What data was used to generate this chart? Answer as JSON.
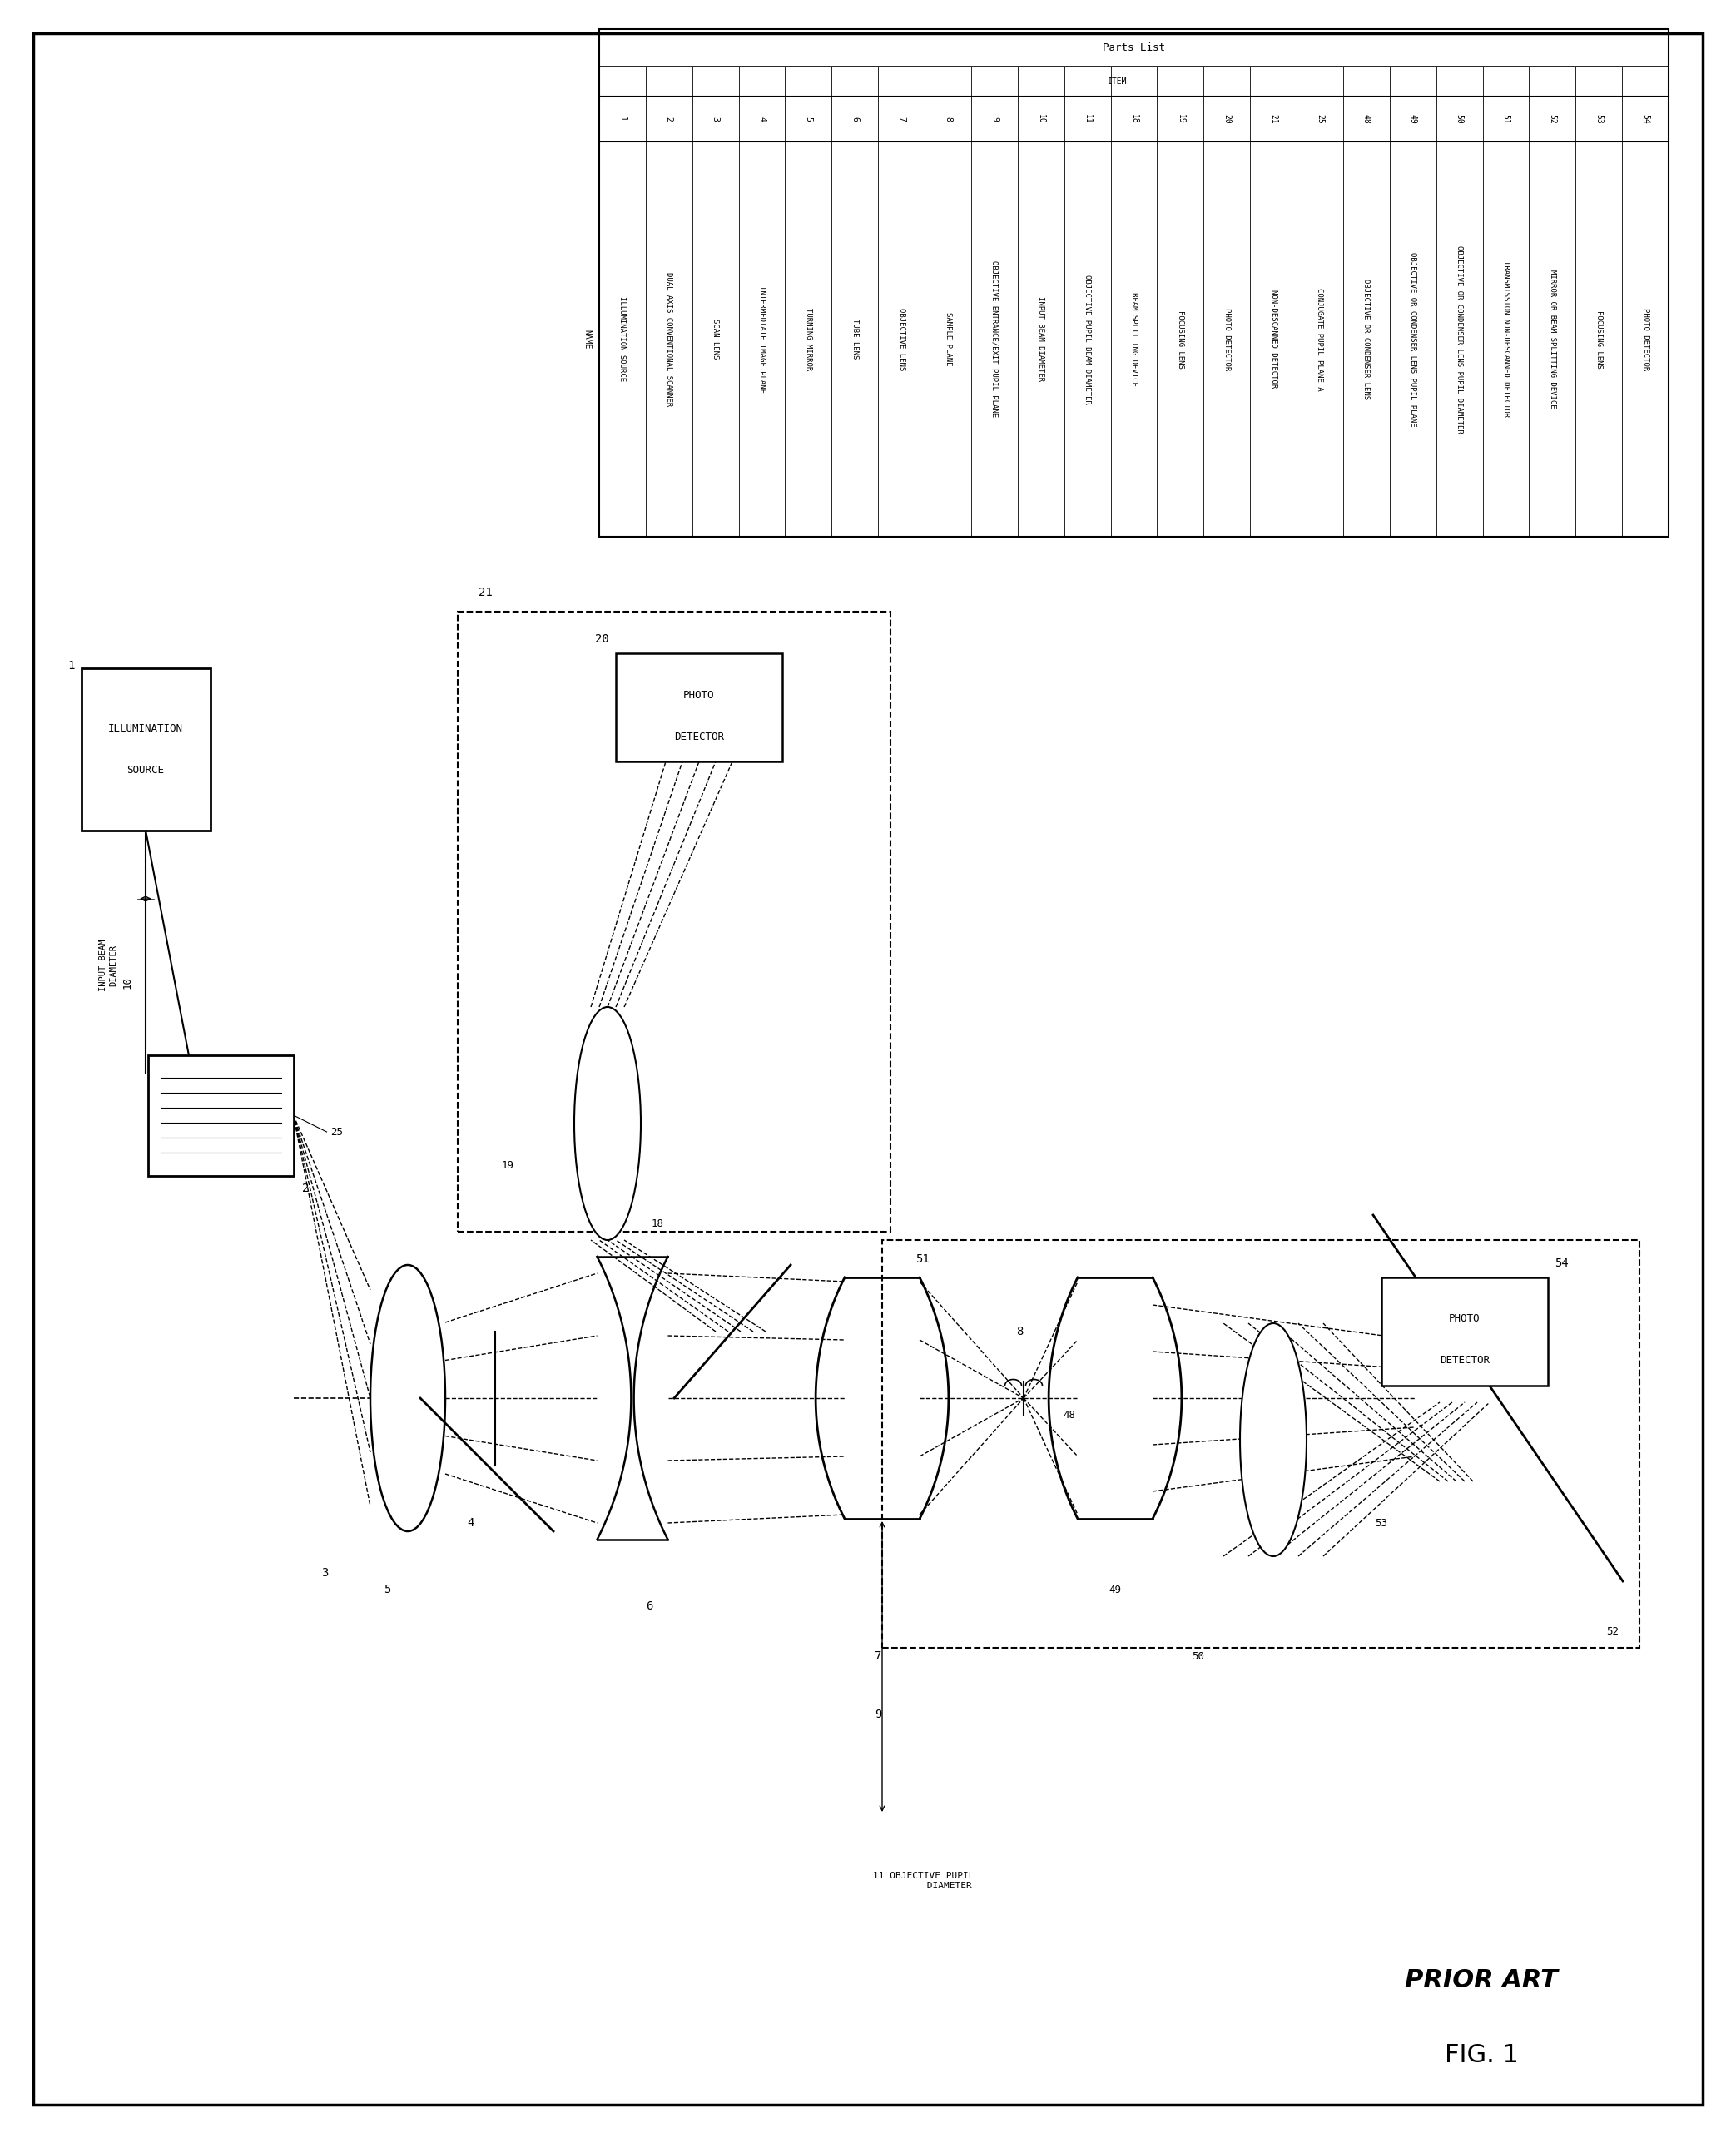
{
  "fig_width": 20.86,
  "fig_height": 25.69,
  "bg_color": "#ffffff",
  "title_bottom": "PRIOR ART",
  "fig_label": "FIG. 1",
  "parts_list_rows": [
    [
      "1",
      "ILLUMINATION SOURCE"
    ],
    [
      "2",
      "DUAL AXIS CONVENTIONAL SCANNER"
    ],
    [
      "3",
      "SCAN LENS"
    ],
    [
      "4",
      "INTERMEDIATE IMAGE PLANE"
    ],
    [
      "5",
      "TURNING MIRROR"
    ],
    [
      "6",
      "TUBE LENS"
    ],
    [
      "7",
      "OBJECTIVE LENS"
    ],
    [
      "8",
      "SAMPLE PLANE"
    ],
    [
      "9",
      "OBJECTIVE ENTRANCE/EXIT PUPIL PLANE"
    ],
    [
      "10",
      "INPUT BEAM DIAMETER"
    ],
    [
      "11",
      "OBJECTIVE PUPIL BEAM DIAMETER"
    ],
    [
      "18",
      "BEAM SPLITTING DEVICE"
    ],
    [
      "19",
      "FOCUSING LENS"
    ],
    [
      "20",
      "PHOTO DETECTOR"
    ],
    [
      "21",
      "NON-DESCANNED DETECTOR"
    ],
    [
      "25",
      "CONJUGATE PUPIL PLANE A"
    ],
    [
      "48",
      "OBJECTIVE OR CONDENSER LENS"
    ],
    [
      "49",
      "OBJECTIVE OR CONDENSER LENS PUPIL PLANE"
    ],
    [
      "50",
      "OBJECTIVE OR CONDENSER LENS PUPIL DIAMETER"
    ],
    [
      "51",
      "TRANSMISSION NON-DESCANNED DETECTOR"
    ],
    [
      "52",
      "MIRROR OR BEAM SPLITTING DEVICE"
    ],
    [
      "53",
      "FOCUSING LENS"
    ],
    [
      "54",
      "PHOTO DETECTOR"
    ]
  ]
}
